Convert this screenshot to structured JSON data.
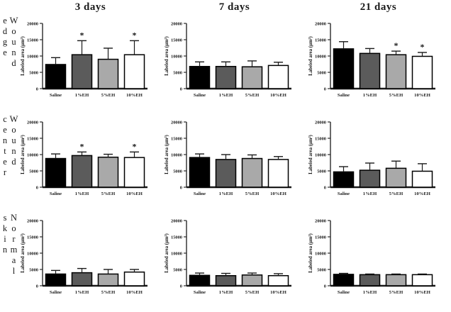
{
  "figure": {
    "column_titles": [
      "3 days",
      "7 days",
      "21 days"
    ],
    "row_labels": [
      "Wound edge",
      "Wound center",
      "Normal skin"
    ]
  },
  "chart_data": {
    "type": "bar",
    "layout": "3x3 grid of bar charts; columns are time points, rows are tissue regions",
    "shared": {
      "categories": [
        "Saline",
        "1%EH",
        "5%EH",
        "10%EH"
      ],
      "ylabel": "Labeled area (μm²)",
      "ylim": [
        0,
        20000
      ],
      "yticks": [
        0,
        5000,
        10000,
        15000,
        20000
      ],
      "ytick_labels": [
        "0",
        "5000",
        "10000",
        "15000",
        "20000"
      ],
      "grid": false,
      "legend": "none",
      "error_bars": "upper only, T-cap",
      "significance_marker": "*",
      "bar_colors": [
        "#000000",
        "#5b5b5b",
        "#a9a9a9",
        "#ffffff"
      ],
      "bar_edge_color": "#000000",
      "axis_color": "#1a1a1a"
    },
    "charts": [
      {
        "row": "Wound edge",
        "column": "3 days",
        "values": [
          7400,
          10400,
          9000,
          10400
        ],
        "errors_upper": [
          2100,
          4300,
          3400,
          4300
        ],
        "significant": [
          false,
          true,
          false,
          true
        ]
      },
      {
        "row": "Wound edge",
        "column": "7 days",
        "values": [
          6800,
          6800,
          6700,
          7100
        ],
        "errors_upper": [
          1400,
          1400,
          1800,
          1000
        ],
        "significant": [
          false,
          false,
          false,
          false
        ]
      },
      {
        "row": "Wound edge",
        "column": "21 days",
        "values": [
          12200,
          10800,
          10400,
          9900
        ],
        "errors_upper": [
          2200,
          1500,
          1100,
          1200
        ],
        "significant": [
          false,
          false,
          true,
          true
        ]
      },
      {
        "row": "Wound center",
        "column": "3 days",
        "values": [
          8800,
          9700,
          9200,
          9100
        ],
        "errors_upper": [
          1400,
          1100,
          900,
          1700
        ],
        "significant": [
          false,
          true,
          false,
          true
        ]
      },
      {
        "row": "Wound center",
        "column": "7 days",
        "values": [
          9100,
          8500,
          8800,
          8500
        ],
        "errors_upper": [
          1100,
          1500,
          1100,
          900
        ],
        "significant": [
          false,
          false,
          false,
          false
        ]
      },
      {
        "row": "Wound center",
        "column": "21 days",
        "values": [
          4700,
          5200,
          5800,
          4900
        ],
        "errors_upper": [
          1600,
          2200,
          2200,
          2300
        ],
        "significant": [
          false,
          false,
          false,
          false
        ]
      },
      {
        "row": "Normal skin",
        "column": "3 days",
        "values": [
          3600,
          4000,
          3600,
          4200
        ],
        "errors_upper": [
          1100,
          1300,
          1400,
          800
        ],
        "significant": [
          false,
          false,
          false,
          false
        ]
      },
      {
        "row": "Normal skin",
        "column": "7 days",
        "values": [
          3200,
          3100,
          3300,
          3100
        ],
        "errors_upper": [
          700,
          700,
          600,
          600
        ],
        "significant": [
          false,
          false,
          false,
          false
        ]
      },
      {
        "row": "Normal skin",
        "column": "21 days",
        "values": [
          3500,
          3400,
          3400,
          3400
        ],
        "errors_upper": [
          300,
          200,
          200,
          200
        ],
        "significant": [
          false,
          false,
          false,
          false
        ]
      }
    ]
  }
}
